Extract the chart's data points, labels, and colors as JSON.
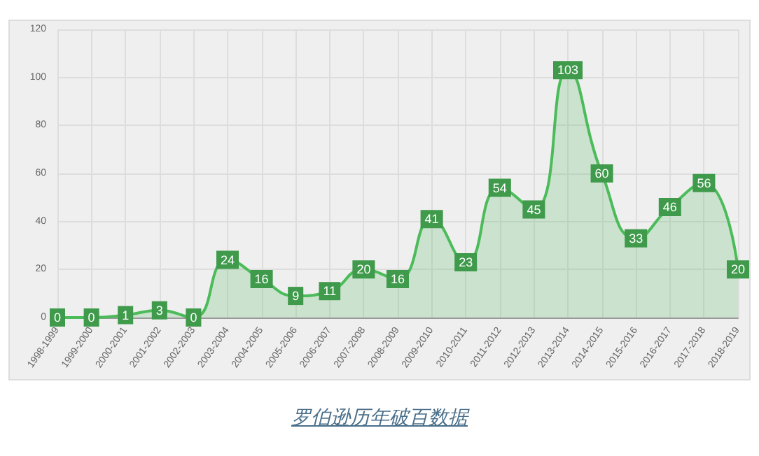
{
  "chart_data": {
    "type": "area",
    "title": "罗伯逊历年破百数据",
    "categories": [
      "1998-1999",
      "1999-2000",
      "2000-2001",
      "2001-2002",
      "2002-2003",
      "2003-2004",
      "2004-2005",
      "2005-2006",
      "2006-2007",
      "2007-2008",
      "2008-2009",
      "2009-2010",
      "2010-2011",
      "2011-2012",
      "2012-2013",
      "2013-2014",
      "2014-2015",
      "2015-2016",
      "2016-2017",
      "2017-2018",
      "2018-2019"
    ],
    "values": [
      0,
      0,
      1,
      3,
      0,
      24,
      16,
      9,
      11,
      20,
      16,
      41,
      23,
      54,
      45,
      103,
      60,
      33,
      46,
      56,
      20
    ],
    "color": "#4cbb5a",
    "ylim": [
      0,
      120
    ],
    "yticks": [
      0,
      20,
      40,
      60,
      80,
      100,
      120
    ],
    "grid": true,
    "data_labels": true
  }
}
